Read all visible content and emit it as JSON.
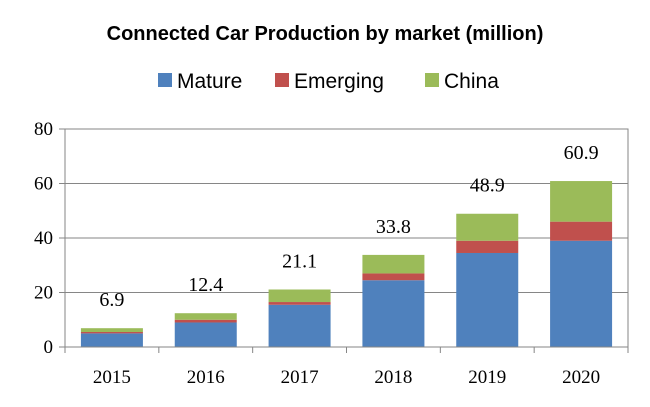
{
  "chart_data": {
    "type": "bar",
    "stacked": true,
    "title": "Connected Car Production by market (million)",
    "xlabel": "",
    "ylabel": "",
    "categories": [
      "2015",
      "2016",
      "2017",
      "2018",
      "2019",
      "2020"
    ],
    "series": [
      {
        "name": "Mature",
        "color": "#4f81bd",
        "values": [
          5.0,
          9.0,
          15.5,
          24.5,
          34.5,
          39.0
        ]
      },
      {
        "name": "Emerging",
        "color": "#c0504d",
        "values": [
          0.5,
          1.0,
          1.0,
          2.5,
          4.5,
          7.0
        ]
      },
      {
        "name": "China",
        "color": "#9bbb59",
        "values": [
          1.4,
          2.4,
          4.6,
          6.8,
          9.9,
          14.9
        ]
      }
    ],
    "totals": [
      "6.9",
      "12.4",
      "21.1",
      "33.8",
      "48.9",
      "60.9"
    ],
    "ylim": [
      0,
      80
    ],
    "yticks": [
      "0",
      "20",
      "40",
      "60",
      "80"
    ],
    "grid": true,
    "legend": "top"
  }
}
